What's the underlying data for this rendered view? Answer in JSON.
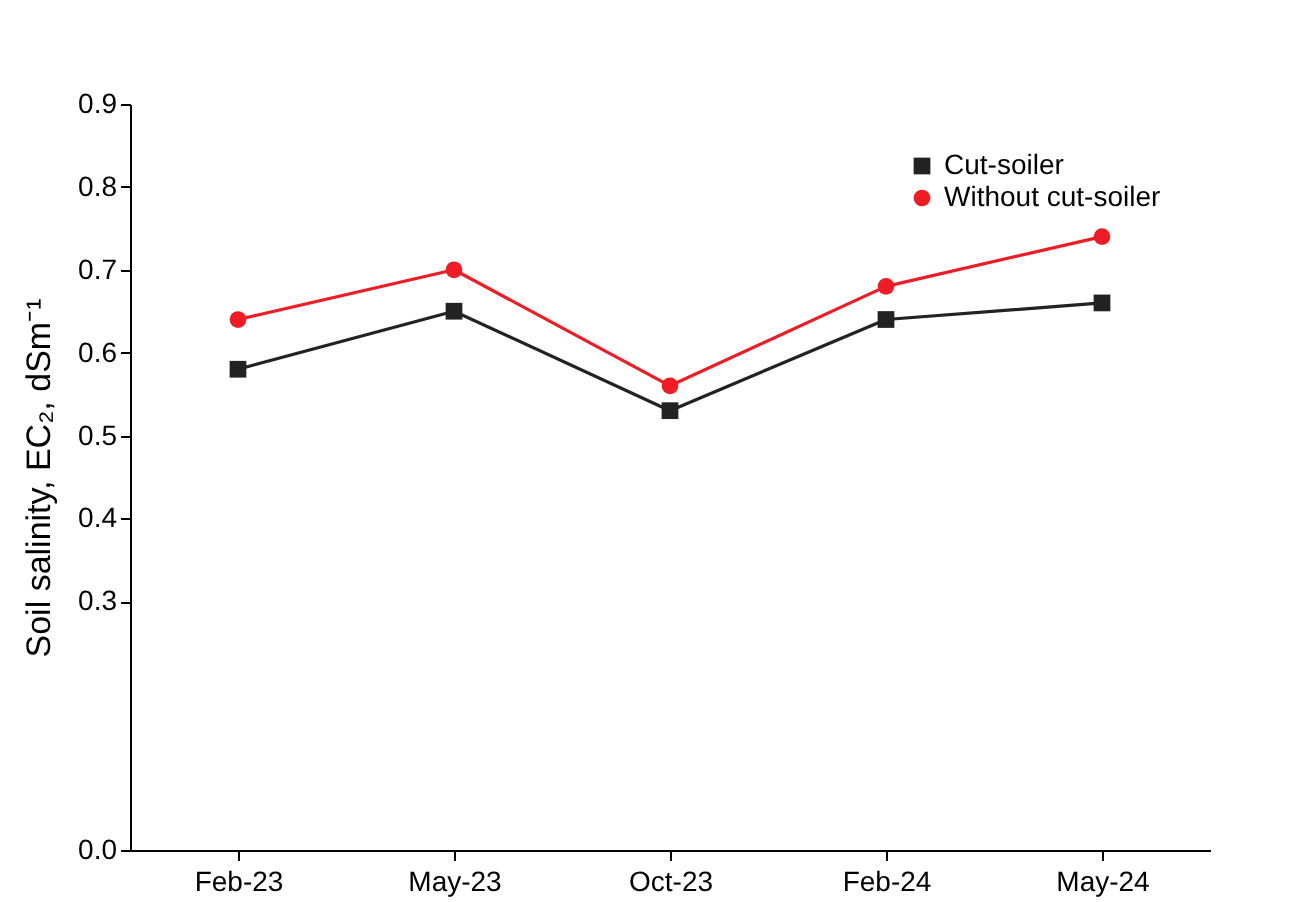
{
  "chart_data": {
    "type": "line",
    "ylabel": "Soil salinity, EC₂, dSm⁻¹",
    "categories": [
      "Feb-23",
      "May-23",
      "Oct-23",
      "Feb-24",
      "May-24"
    ],
    "series": [
      {
        "name": "Cut-soiler",
        "color": "#222222",
        "marker": "square",
        "values": [
          0.58,
          0.65,
          0.53,
          0.64,
          0.66
        ]
      },
      {
        "name": "Without cut-soiler",
        "color": "#ee1c25",
        "marker": "circle",
        "values": [
          0.64,
          0.7,
          0.56,
          0.68,
          0.74
        ]
      }
    ],
    "ylim": [
      0,
      0.9
    ],
    "yticks": [
      {
        "value": 0,
        "label": "0.0"
      },
      {
        "value": 0.3,
        "label": "0.3"
      },
      {
        "value": 0.4,
        "label": "0.4"
      },
      {
        "value": 0.5,
        "label": "0.5"
      },
      {
        "value": 0.6,
        "label": "0.6"
      },
      {
        "value": 0.7,
        "label": "0.7"
      },
      {
        "value": 0.8,
        "label": "0.8"
      },
      {
        "value": 0.9,
        "label": "0.9"
      }
    ],
    "grid": false,
    "legend": "top right",
    "line_style": "solid"
  }
}
